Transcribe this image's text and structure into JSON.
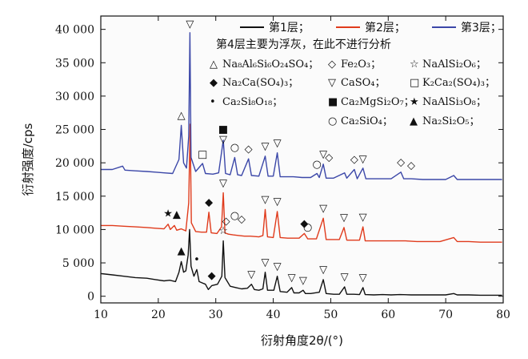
{
  "chart_data": {
    "type": "line",
    "xlabel": "衍射角度2θ/(°)",
    "ylabel": "衍射强度/cps",
    "xlim": [
      10,
      80
    ],
    "ylim": [
      -1000,
      42000
    ],
    "grid": false,
    "legend_position": "top-right",
    "x_ticks": [
      "10",
      "20",
      "30",
      "40",
      "50",
      "60",
      "70",
      "80"
    ],
    "y_ticks": [
      "0",
      "5 000",
      "10 000",
      "15 000",
      "20 000",
      "25 000",
      "30 000",
      "35 000",
      "40 000"
    ],
    "note": "第4层主要为浮灰，在此不进行分析",
    "series": [
      {
        "name": "第1层",
        "color": "#111111",
        "points": [
          [
            10,
            3400
          ],
          [
            12,
            3200
          ],
          [
            14,
            3000
          ],
          [
            16,
            2800
          ],
          [
            18,
            2700
          ],
          [
            19.5,
            2500
          ],
          [
            21,
            2300
          ],
          [
            22,
            2400
          ],
          [
            23,
            2200
          ],
          [
            23.6,
            3600
          ],
          [
            24.0,
            5200
          ],
          [
            24.4,
            3600
          ],
          [
            24.8,
            3800
          ],
          [
            25.2,
            6200
          ],
          [
            25.45,
            10000
          ],
          [
            25.7,
            4500
          ],
          [
            26.2,
            3000
          ],
          [
            26.7,
            4000
          ],
          [
            27.1,
            2200
          ],
          [
            28.2,
            1800
          ],
          [
            28.7,
            1000
          ],
          [
            29.3,
            1600
          ],
          [
            30.3,
            1800
          ],
          [
            31.05,
            3000
          ],
          [
            31.3,
            8300
          ],
          [
            31.6,
            2800
          ],
          [
            32.5,
            1500
          ],
          [
            33.5,
            1300
          ],
          [
            34.5,
            1100
          ],
          [
            35.5,
            1200
          ],
          [
            36.2,
            1800
          ],
          [
            36.7,
            1000
          ],
          [
            37.5,
            900
          ],
          [
            38.2,
            1100
          ],
          [
            38.6,
            3600
          ],
          [
            39.0,
            900
          ],
          [
            40.1,
            900
          ],
          [
            40.7,
            3000
          ],
          [
            41.2,
            700
          ],
          [
            42.4,
            600
          ],
          [
            43.2,
            1300
          ],
          [
            43.6,
            500
          ],
          [
            44.5,
            500
          ],
          [
            45.2,
            900
          ],
          [
            45.6,
            400
          ],
          [
            46.5,
            400
          ],
          [
            48.0,
            600
          ],
          [
            48.7,
            2500
          ],
          [
            49.2,
            400
          ],
          [
            50.5,
            300
          ],
          [
            51.5,
            300
          ],
          [
            52.4,
            1400
          ],
          [
            52.8,
            300
          ],
          [
            54.0,
            300
          ],
          [
            55.0,
            250
          ],
          [
            55.6,
            1300
          ],
          [
            56.0,
            250
          ],
          [
            57.5,
            200
          ],
          [
            59.0,
            250
          ],
          [
            60.5,
            200
          ],
          [
            62.0,
            250
          ],
          [
            64.0,
            200
          ],
          [
            66.0,
            200
          ],
          [
            68.0,
            200
          ],
          [
            70.0,
            200
          ],
          [
            71.4,
            400
          ],
          [
            72.0,
            200
          ],
          [
            74.0,
            200
          ],
          [
            76.0,
            150
          ],
          [
            78.0,
            150
          ],
          [
            79.8,
            150
          ]
        ]
      },
      {
        "name": "第2层",
        "color": "#e03b1c",
        "points": [
          [
            10,
            10600
          ],
          [
            12,
            10600
          ],
          [
            14,
            10500
          ],
          [
            16,
            10400
          ],
          [
            18,
            10300
          ],
          [
            19.5,
            10200
          ],
          [
            21,
            10100
          ],
          [
            21.7,
            10800
          ],
          [
            22.1,
            10000
          ],
          [
            22.8,
            10600
          ],
          [
            23.2,
            9900
          ],
          [
            24.0,
            10100
          ],
          [
            24.8,
            9800
          ],
          [
            25.3,
            14000
          ],
          [
            25.55,
            25800
          ],
          [
            25.75,
            11000
          ],
          [
            26.5,
            9700
          ],
          [
            27.5,
            9600
          ],
          [
            28.4,
            9600
          ],
          [
            28.8,
            12600
          ],
          [
            29.2,
            9500
          ],
          [
            30.2,
            9400
          ],
          [
            31.0,
            10400
          ],
          [
            31.3,
            15500
          ],
          [
            31.6,
            9500
          ],
          [
            32.2,
            9300
          ],
          [
            33.0,
            9200
          ],
          [
            34.0,
            9100
          ],
          [
            35.0,
            9000
          ],
          [
            36.0,
            9000
          ],
          [
            37.5,
            8900
          ],
          [
            38.2,
            9100
          ],
          [
            38.6,
            13000
          ],
          [
            39.0,
            8900
          ],
          [
            40.0,
            8800
          ],
          [
            40.7,
            12700
          ],
          [
            41.2,
            8800
          ],
          [
            42.5,
            8700
          ],
          [
            43.5,
            8700
          ],
          [
            44.5,
            8700
          ],
          [
            45.4,
            9400
          ],
          [
            46.0,
            8600
          ],
          [
            47.5,
            8600
          ],
          [
            48.7,
            11700
          ],
          [
            49.2,
            8500
          ],
          [
            50.5,
            8500
          ],
          [
            51.5,
            8500
          ],
          [
            52.3,
            10300
          ],
          [
            52.8,
            8400
          ],
          [
            54.0,
            8400
          ],
          [
            55.0,
            8400
          ],
          [
            55.6,
            10400
          ],
          [
            56.0,
            8300
          ],
          [
            57.5,
            8300
          ],
          [
            59.0,
            8300
          ],
          [
            61.0,
            8300
          ],
          [
            63.0,
            8300
          ],
          [
            65.0,
            8200
          ],
          [
            67.0,
            8200
          ],
          [
            69.0,
            8200
          ],
          [
            71.4,
            8800
          ],
          [
            72.0,
            8200
          ],
          [
            74.0,
            8200
          ],
          [
            76.0,
            8100
          ],
          [
            78.0,
            8100
          ],
          [
            79.8,
            8100
          ]
        ]
      },
      {
        "name": "第3层",
        "color": "#3b47a8",
        "points": [
          [
            10,
            19000
          ],
          [
            12,
            19000
          ],
          [
            13.8,
            19500
          ],
          [
            14.2,
            18900
          ],
          [
            16,
            18800
          ],
          [
            18,
            18700
          ],
          [
            19.5,
            18600
          ],
          [
            21,
            18500
          ],
          [
            22.5,
            18400
          ],
          [
            23.6,
            20500
          ],
          [
            24.0,
            25600
          ],
          [
            24.4,
            20000
          ],
          [
            24.9,
            19200
          ],
          [
            25.3,
            24000
          ],
          [
            25.5,
            39500
          ],
          [
            25.7,
            20800
          ],
          [
            26.5,
            18700
          ],
          [
            27.7,
            19900
          ],
          [
            28.2,
            18400
          ],
          [
            29.5,
            18300
          ],
          [
            30.5,
            18500
          ],
          [
            31.3,
            23400
          ],
          [
            31.7,
            18400
          ],
          [
            32.5,
            18200
          ],
          [
            33.3,
            20800
          ],
          [
            33.8,
            18200
          ],
          [
            34.5,
            18100
          ],
          [
            35.7,
            20600
          ],
          [
            36.2,
            18100
          ],
          [
            37.5,
            18000
          ],
          [
            38.6,
            21000
          ],
          [
            39.1,
            18000
          ],
          [
            40.0,
            18000
          ],
          [
            40.7,
            21500
          ],
          [
            41.2,
            17900
          ],
          [
            42.5,
            17900
          ],
          [
            43.5,
            17900
          ],
          [
            45.0,
            17800
          ],
          [
            46.5,
            17800
          ],
          [
            47.6,
            18400
          ],
          [
            48.0,
            17800
          ],
          [
            48.7,
            19800
          ],
          [
            49.2,
            17700
          ],
          [
            50.5,
            17700
          ],
          [
            52.4,
            18500
          ],
          [
            52.8,
            17700
          ],
          [
            54.1,
            19000
          ],
          [
            54.6,
            17600
          ],
          [
            55.6,
            19200
          ],
          [
            56.1,
            17600
          ],
          [
            57.5,
            17600
          ],
          [
            59.0,
            17600
          ],
          [
            60.5,
            17600
          ],
          [
            62.2,
            18600
          ],
          [
            62.7,
            17600
          ],
          [
            64.0,
            17600
          ],
          [
            66.0,
            17500
          ],
          [
            68.0,
            17500
          ],
          [
            70.0,
            17500
          ],
          [
            71.4,
            18100
          ],
          [
            72.0,
            17500
          ],
          [
            74.0,
            17500
          ],
          [
            76.0,
            17500
          ],
          [
            78.0,
            17500
          ],
          [
            79.8,
            17500
          ]
        ]
      }
    ],
    "phase_key": [
      [
        {
          "symbol": "△",
          "label_base": "Na₈Al₆Si₆O₂₄SO₄"
        },
        {
          "symbol": "◇",
          "label_base": "Fe₂O₃"
        },
        {
          "symbol": "☆",
          "label_base": "NaAlSi₂O₆"
        }
      ],
      [
        {
          "symbol": "◆",
          "label_base": "Na₂Ca(SO₄)₃"
        },
        {
          "symbol": "▽",
          "label_base": "CaSO₄"
        },
        {
          "symbol": "□",
          "label_base": "K₂Ca₂(SO₄)₃"
        }
      ],
      [
        {
          "symbol": "•",
          "label_base": "Ca₂Si₈O₁₈"
        },
        {
          "symbol": "■",
          "label_base": "Ca₂MgSi₂O₇"
        },
        {
          "symbol": "★",
          "label_base": "NaAlSi₃O₈"
        }
      ],
      [
        {
          "symbol": "○",
          "label_base": "Ca₂SiO₄"
        },
        {
          "symbol": "▲",
          "label_base": "Na₂Si₂O₅"
        }
      ]
    ],
    "annotations": [
      {
        "symbol": "▽",
        "x": 25.5,
        "y": 40300
      },
      {
        "symbol": "△",
        "x": 24.0,
        "y": 26600
      },
      {
        "symbol": "■",
        "x": 31.3,
        "y": 24500
      },
      {
        "symbol": "▽",
        "x": 31.3,
        "y": 23000
      },
      {
        "symbol": "□",
        "x": 27.7,
        "y": 20800
      },
      {
        "symbol": "○",
        "x": 33.3,
        "y": 21800
      },
      {
        "symbol": "◇",
        "x": 35.7,
        "y": 21600
      },
      {
        "symbol": "▽",
        "x": 38.6,
        "y": 22000
      },
      {
        "symbol": "▽",
        "x": 40.7,
        "y": 22500
      },
      {
        "symbol": "▽",
        "x": 48.7,
        "y": 20800
      },
      {
        "symbol": "◇",
        "x": 49.7,
        "y": 20300
      },
      {
        "symbol": "○",
        "x": 47.6,
        "y": 19300
      },
      {
        "symbol": "◇",
        "x": 54.1,
        "y": 20000
      },
      {
        "symbol": "▽",
        "x": 55.6,
        "y": 20100
      },
      {
        "symbol": "◇",
        "x": 62.2,
        "y": 19600
      },
      {
        "symbol": "◇",
        "x": 64.0,
        "y": 19100
      },
      {
        "symbol": "★",
        "x": 21.7,
        "y": 11900
      },
      {
        "symbol": "▲",
        "x": 23.2,
        "y": 11800
      },
      {
        "symbol": "◆",
        "x": 28.8,
        "y": 13600
      },
      {
        "symbol": "▽",
        "x": 31.3,
        "y": 16500
      },
      {
        "symbol": "○",
        "x": 33.3,
        "y": 11600
      },
      {
        "symbol": "◇",
        "x": 34.5,
        "y": 11100
      },
      {
        "symbol": "◇",
        "x": 31.8,
        "y": 10800
      },
      {
        "symbol": "▽",
        "x": 38.6,
        "y": 14000
      },
      {
        "symbol": "▽",
        "x": 40.7,
        "y": 13700
      },
      {
        "symbol": "◆",
        "x": 45.4,
        "y": 10400
      },
      {
        "symbol": "○",
        "x": 46.0,
        "y": 9900
      },
      {
        "symbol": "▽",
        "x": 48.7,
        "y": 12700
      },
      {
        "symbol": "▽",
        "x": 52.3,
        "y": 11300
      },
      {
        "symbol": "▽",
        "x": 55.6,
        "y": 11400
      },
      {
        "symbol": "▲",
        "x": 24.0,
        "y": 6300
      },
      {
        "symbol": "•",
        "x": 26.7,
        "y": 5000
      },
      {
        "symbol": "☆",
        "x": 31.3,
        "y": 9300
      },
      {
        "symbol": "◆",
        "x": 29.3,
        "y": 2600
      },
      {
        "symbol": "▽",
        "x": 36.2,
        "y": 2800
      },
      {
        "symbol": "▽",
        "x": 38.6,
        "y": 4600
      },
      {
        "symbol": "▽",
        "x": 40.7,
        "y": 4000
      },
      {
        "symbol": "▽",
        "x": 43.2,
        "y": 2300
      },
      {
        "symbol": "▽",
        "x": 45.2,
        "y": 1900
      },
      {
        "symbol": "▽",
        "x": 48.7,
        "y": 3500
      },
      {
        "symbol": "▽",
        "x": 52.4,
        "y": 2400
      },
      {
        "symbol": "▽",
        "x": 55.6,
        "y": 2300
      }
    ]
  }
}
